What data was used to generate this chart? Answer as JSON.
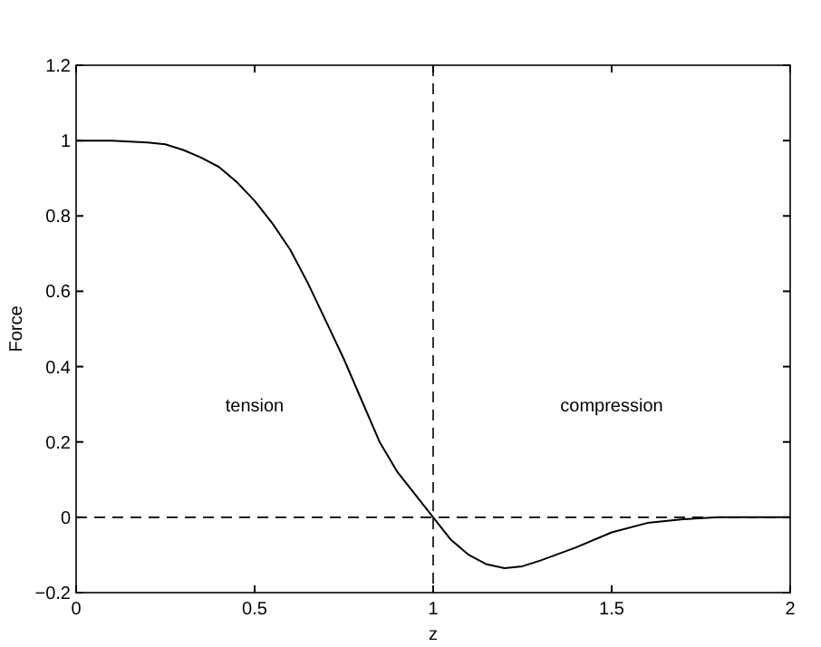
{
  "chart_data": {
    "type": "line",
    "xlabel": "z",
    "ylabel": "Force",
    "x": [
      0,
      0.1,
      0.2,
      0.25,
      0.3,
      0.35,
      0.4,
      0.45,
      0.5,
      0.55,
      0.6,
      0.65,
      0.7,
      0.75,
      0.8,
      0.85,
      0.9,
      0.95,
      1,
      1.05,
      1.1,
      1.15,
      1.2,
      1.25,
      1.3,
      1.4,
      1.5,
      1.6,
      1.7,
      1.8,
      1.9,
      2
    ],
    "series": [
      {
        "color": "#000000",
        "values": [
          1,
          1,
          0.995,
          0.99,
          0.975,
          0.955,
          0.93,
          0.89,
          0.84,
          0.78,
          0.71,
          0.62,
          0.52,
          0.42,
          0.31,
          0.2,
          0.12,
          0.06,
          0,
          -0.06,
          -0.1,
          -0.125,
          -0.135,
          -0.13,
          -0.115,
          -0.08,
          -0.04,
          -0.015,
          -0.005,
          0,
          0,
          0
        ]
      }
    ],
    "xlim": [
      0,
      2
    ],
    "xticks": [
      0,
      0.5,
      1,
      1.5,
      2
    ],
    "ylim": [
      -0.2,
      1.2
    ],
    "yticks": [
      {
        "value": -0.2,
        "label": "−0.2"
      },
      0,
      0.2,
      0.4,
      0.6,
      0.8,
      1,
      1.2
    ],
    "ref_lines": [
      {
        "axis": "x",
        "value": 1,
        "line_style": "dashed",
        "color": "#000000"
      },
      {
        "axis": "y",
        "value": 0,
        "line_style": "dashed",
        "color": "#000000"
      }
    ],
    "annotations": [
      "tension",
      "compression"
    ],
    "grid": false,
    "line_style": "solid"
  }
}
